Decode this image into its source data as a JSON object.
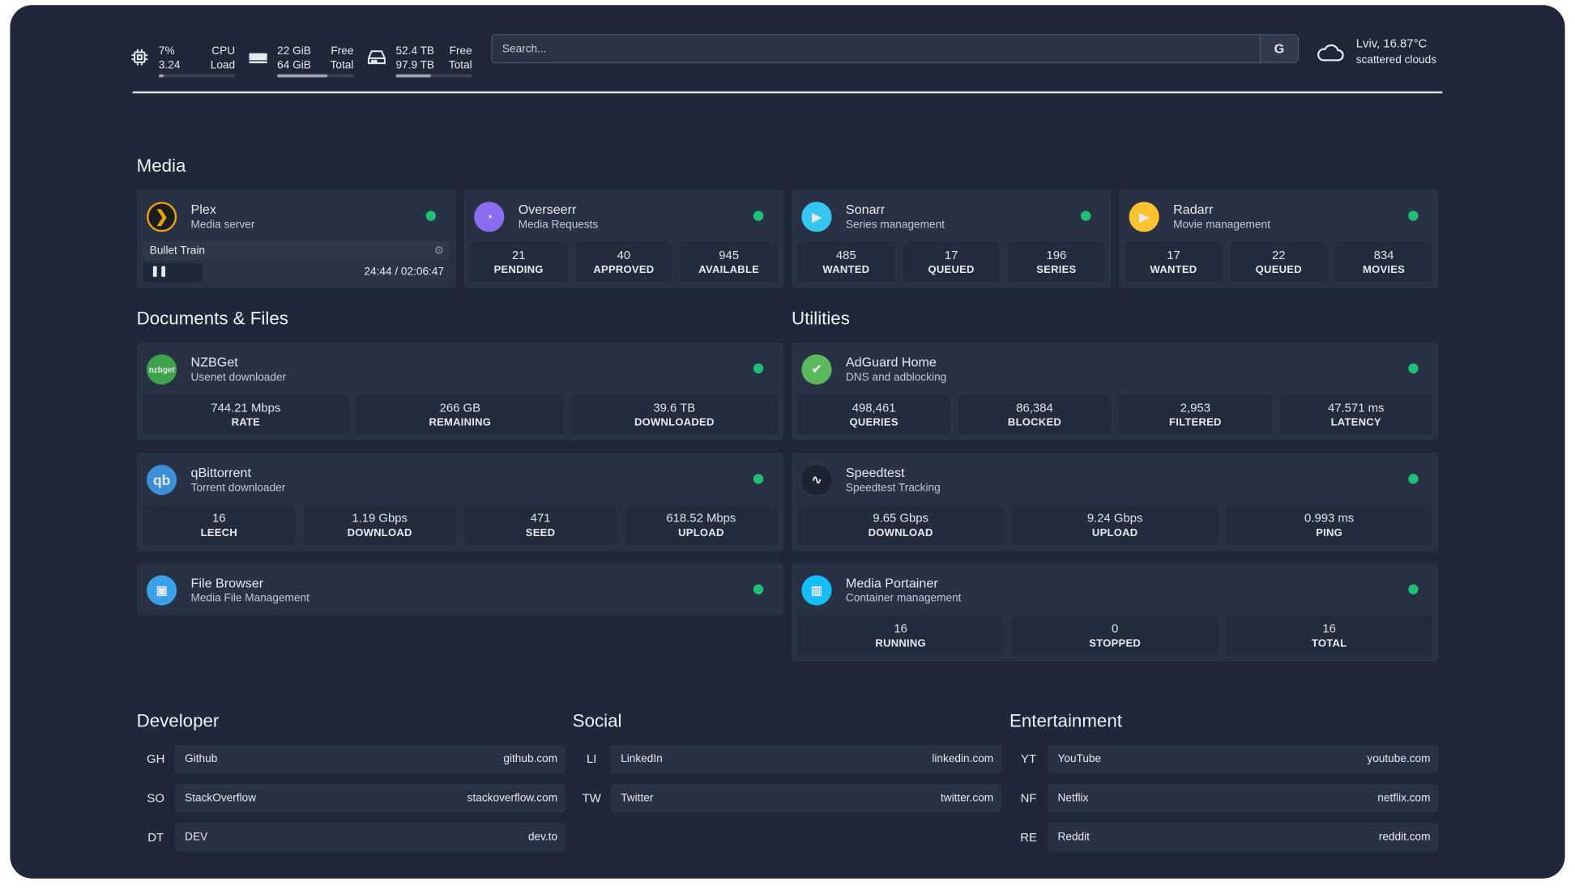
{
  "header": {
    "cpu": {
      "icon": "cpu-icon",
      "v1": "7%",
      "v2": "3.24",
      "l1": "CPU",
      "l2": "Load",
      "fill": 7
    },
    "ram": {
      "icon": "memory-icon",
      "v1": "22 GiB",
      "v2": "64 GiB",
      "l1": "Free",
      "l2": "Total",
      "fill": 66
    },
    "disk": {
      "icon": "hard-drive-icon",
      "v1": "52.4 TB",
      "v2": "97.9 TB",
      "l1": "Free",
      "l2": "Total",
      "fill": 46
    },
    "search": {
      "placeholder": "Search...",
      "engine": "G"
    },
    "weather": {
      "icon": "cloud-icon",
      "location": "Lviv, 16.87°C",
      "desc": "scattered clouds"
    }
  },
  "sections": {
    "media": "Media",
    "docs": "Documents & Files",
    "utilities": "Utilities",
    "developer": "Developer",
    "social": "Social",
    "entertainment": "Entertainment"
  },
  "plex": {
    "name": "Plex",
    "desc": "Media server",
    "now_playing": "Bullet Train",
    "time": "24:44 / 02:06:47",
    "progress": 19.5
  },
  "cards": [
    {
      "id": "overseerr",
      "name": "Overseerr",
      "desc": "Media Requests",
      "logo_color": "#8b6cf0",
      "stats": [
        {
          "v": "21",
          "k": "PENDING"
        },
        {
          "v": "40",
          "k": "APPROVED"
        },
        {
          "v": "945",
          "k": "AVAILABLE"
        }
      ]
    },
    {
      "id": "sonarr",
      "name": "Sonarr",
      "desc": "Series management",
      "logo_color": "#35c5f0",
      "stats": [
        {
          "v": "485",
          "k": "WANTED"
        },
        {
          "v": "17",
          "k": "QUEUED"
        },
        {
          "v": "196",
          "k": "SERIES"
        }
      ]
    },
    {
      "id": "radarr",
      "name": "Radarr",
      "desc": "Movie management",
      "logo_color": "#ffc230",
      "stats": [
        {
          "v": "17",
          "k": "WANTED"
        },
        {
          "v": "22",
          "k": "QUEUED"
        },
        {
          "v": "834",
          "k": "MOVIES"
        }
      ]
    },
    {
      "id": "nzbget",
      "name": "NZBGet",
      "desc": "Usenet downloader",
      "logo_color": "#3fa34d",
      "logo_text": "nzbget",
      "stats": [
        {
          "v": "744.21 Mbps",
          "k": "RATE"
        },
        {
          "v": "266 GB",
          "k": "REMAINING"
        },
        {
          "v": "39.6 TB",
          "k": "DOWNLOADED"
        }
      ]
    },
    {
      "id": "qbittorrent",
      "name": "qBittorrent",
      "desc": "Torrent downloader",
      "logo_color": "#3d8fd6",
      "logo_text": "qb",
      "stats": [
        {
          "v": "16",
          "k": "LEECH"
        },
        {
          "v": "1.19 Gbps",
          "k": "DOWNLOAD"
        },
        {
          "v": "471",
          "k": "SEED"
        },
        {
          "v": "618.52 Mbps",
          "k": "UPLOAD"
        }
      ]
    },
    {
      "id": "filebrowser",
      "name": "File Browser",
      "desc": "Media File Management",
      "logo_color": "#3aa0e8",
      "stats": []
    },
    {
      "id": "adguard",
      "name": "AdGuard Home",
      "desc": "DNS and adblocking",
      "logo_color": "#5cb85c",
      "stats": [
        {
          "v": "498,461",
          "k": "QUERIES"
        },
        {
          "v": "86,384",
          "k": "BLOCKED"
        },
        {
          "v": "2,953",
          "k": "FILTERED"
        },
        {
          "v": "47.571 ms",
          "k": "LATENCY"
        }
      ]
    },
    {
      "id": "speedtest",
      "name": "Speedtest",
      "desc": "Speedtest Tracking",
      "logo_color": "#1c2433",
      "stats": [
        {
          "v": "9.65 Gbps",
          "k": "DOWNLOAD"
        },
        {
          "v": "9.24 Gbps",
          "k": "UPLOAD"
        },
        {
          "v": "0.993 ms",
          "k": "PING"
        }
      ]
    },
    {
      "id": "portainer",
      "name": "Media Portainer",
      "desc": "Container management",
      "logo_color": "#13bef9",
      "stats": [
        {
          "v": "16",
          "k": "RUNNING"
        },
        {
          "v": "0",
          "k": "STOPPED"
        },
        {
          "v": "16",
          "k": "TOTAL"
        }
      ]
    }
  ],
  "bookmarks": {
    "developer": [
      {
        "abbr": "GH",
        "name": "Github",
        "url": "github.com"
      },
      {
        "abbr": "SO",
        "name": "StackOverflow",
        "url": "stackoverflow.com"
      },
      {
        "abbr": "DT",
        "name": "DEV",
        "url": "dev.to"
      }
    ],
    "social": [
      {
        "abbr": "LI",
        "name": "LinkedIn",
        "url": "linkedin.com"
      },
      {
        "abbr": "TW",
        "name": "Twitter",
        "url": "twitter.com"
      }
    ],
    "entertainment": [
      {
        "abbr": "YT",
        "name": "YouTube",
        "url": "youtube.com"
      },
      {
        "abbr": "NF",
        "name": "Netflix",
        "url": "netflix.com"
      },
      {
        "abbr": "RE",
        "name": "Reddit",
        "url": "reddit.com"
      }
    ]
  },
  "colors": {
    "background": "#1f2738",
    "card": "#283244",
    "status_online": "#1fbf75"
  }
}
